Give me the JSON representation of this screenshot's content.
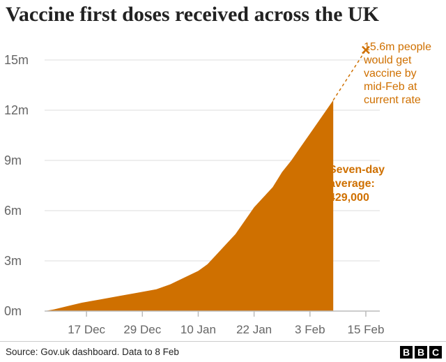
{
  "title": "Vaccine first doses received across the UK",
  "source": "Source: Gov.uk dashboard. Data to 8 Feb",
  "logo": [
    "B",
    "B",
    "C"
  ],
  "colors": {
    "area": "#cf7000",
    "annotation": "#cf7000",
    "grid": "#dddddd",
    "axis": "#bbbbbb",
    "text": "#666666"
  },
  "chart_data": {
    "type": "area",
    "title": "Vaccine first doses received across the UK",
    "xlabel": "",
    "ylabel": "",
    "x_ticks": [
      "17 Dec",
      "29 Dec",
      "10 Jan",
      "22 Jan",
      "3 Feb",
      "15 Feb"
    ],
    "y_ticks": [
      "0m",
      "3m",
      "6m",
      "9m",
      "12m",
      "15m"
    ],
    "ylim": [
      0,
      16.5
    ],
    "xlim": [
      "2020-12-08",
      "2021-02-18"
    ],
    "grid": true,
    "series": [
      {
        "x": [
          "2020-12-08",
          "2020-12-10",
          "2020-12-13",
          "2020-12-16",
          "2020-12-20",
          "2020-12-24",
          "2020-12-28",
          "2021-01-01",
          "2021-01-04",
          "2021-01-07",
          "2021-01-10",
          "2021-01-12",
          "2021-01-14",
          "2021-01-16",
          "2021-01-18",
          "2021-01-20",
          "2021-01-22",
          "2021-01-24",
          "2021-01-26",
          "2021-01-28",
          "2021-01-30",
          "2021-02-01",
          "2021-02-03",
          "2021-02-05",
          "2021-02-07",
          "2021-02-08"
        ],
        "y": [
          0.0,
          0.1,
          0.3,
          0.5,
          0.7,
          0.9,
          1.1,
          1.3,
          1.6,
          2.0,
          2.4,
          2.8,
          3.4,
          4.0,
          4.6,
          5.4,
          6.2,
          6.8,
          7.4,
          8.3,
          9.0,
          9.8,
          10.6,
          11.4,
          12.2,
          12.6
        ]
      }
    ],
    "projection": {
      "from": [
        "2021-02-08",
        12.6
      ],
      "to": [
        "2021-02-15",
        15.6
      ],
      "marker": "x"
    },
    "annotations": {
      "projection_label": [
        "15.6m people",
        "would get",
        "vaccine by",
        "mid-Feb at",
        "current rate"
      ],
      "average_label": [
        "Seven-day",
        "average:",
        "429,000"
      ]
    }
  }
}
